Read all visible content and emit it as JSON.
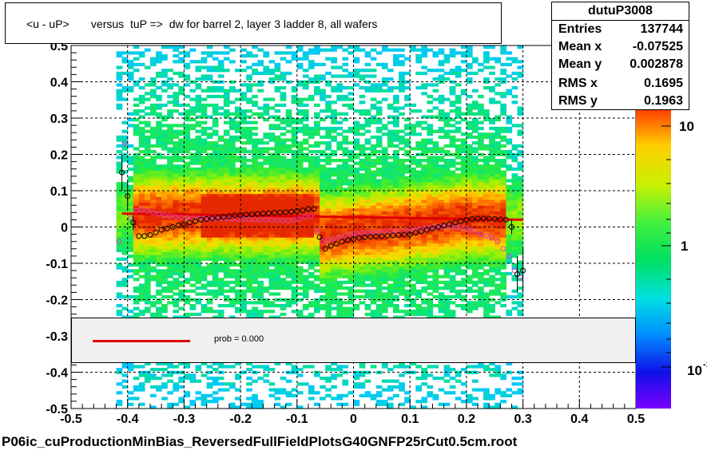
{
  "title": "<u - uP>       versus  tuP =>  dw for barrel 2, layer 3 ladder 8, all wafers",
  "stats": {
    "name": "dutuP3008",
    "rows": [
      {
        "label": "Entries",
        "value": "137744"
      },
      {
        "label": "Mean x",
        "value": "-0.07525"
      },
      {
        "label": "Mean y",
        "value": "0.002878"
      },
      {
        "label": "RMS x",
        "value": "0.1695"
      },
      {
        "label": "RMS y",
        "value": "0.1963"
      }
    ]
  },
  "fit_legend": {
    "text": "prob = 0.000",
    "color": "#e00000"
  },
  "footer": "P06ic_cuProductionMinBias_ReversedFullFieldPlotsG40GNFP25rCut0.5cm.root",
  "colorscale": {
    "labels": [
      "10",
      "1",
      "10"
    ],
    "exponent": "-1"
  },
  "chart_data": {
    "type": "heatmap",
    "xlim": [
      -0.5,
      0.5
    ],
    "ylim": [
      -0.5,
      0.5
    ],
    "xticks": [
      "-0.5",
      "-0.4",
      "-0.3",
      "-0.2",
      "-0.1",
      "0",
      "0.1",
      "0.2",
      "0.3",
      "0.4",
      "0.5"
    ],
    "yticks": [
      "-0.5",
      "-0.4",
      "-0.3",
      "-0.2",
      "-0.1",
      "0",
      "0.1",
      "0.2",
      "0.3",
      "0.4",
      "0.5"
    ],
    "grid": true,
    "fit_line": {
      "x": [
        -0.41,
        0.3
      ],
      "y": [
        0.037,
        0.02
      ],
      "color": "#e00000"
    },
    "profile_black": {
      "x": [
        -0.41,
        -0.4,
        -0.39,
        -0.38,
        -0.37,
        -0.36,
        -0.35,
        -0.34,
        -0.33,
        -0.32,
        -0.31,
        -0.3,
        -0.29,
        -0.28,
        -0.27,
        -0.26,
        -0.25,
        -0.24,
        -0.23,
        -0.22,
        -0.21,
        -0.2,
        -0.19,
        -0.18,
        -0.17,
        -0.16,
        -0.15,
        -0.14,
        -0.13,
        -0.12,
        -0.11,
        -0.1,
        -0.09,
        -0.08,
        -0.07,
        -0.06,
        -0.05,
        -0.04,
        -0.03,
        -0.02,
        -0.01,
        0.0,
        0.01,
        0.02,
        0.03,
        0.04,
        0.05,
        0.06,
        0.07,
        0.08,
        0.09,
        0.1,
        0.11,
        0.12,
        0.13,
        0.14,
        0.15,
        0.16,
        0.17,
        0.18,
        0.19,
        0.2,
        0.21,
        0.22,
        0.23,
        0.24,
        0.25,
        0.26,
        0.27,
        0.28,
        0.29,
        0.3
      ],
      "y": [
        0.15,
        0.085,
        0.012,
        -0.025,
        -0.025,
        -0.022,
        -0.015,
        -0.008,
        -0.004,
        0.0,
        0.005,
        0.008,
        0.012,
        0.016,
        0.02,
        0.022,
        0.024,
        0.026,
        0.028,
        0.03,
        0.032,
        0.033,
        0.034,
        0.035,
        0.036,
        0.037,
        0.038,
        0.039,
        0.04,
        0.041,
        0.042,
        0.044,
        0.046,
        0.05,
        0.05,
        -0.028,
        -0.06,
        -0.052,
        -0.046,
        -0.04,
        -0.036,
        -0.033,
        -0.03,
        -0.028,
        -0.027,
        -0.026,
        -0.025,
        -0.024,
        -0.023,
        -0.022,
        -0.021,
        -0.02,
        -0.016,
        -0.012,
        -0.008,
        -0.004,
        0.0,
        0.004,
        0.008,
        0.012,
        0.016,
        0.02,
        0.022,
        0.023,
        0.023,
        0.023,
        0.022,
        0.021,
        0.02,
        0.0,
        -0.13,
        -0.12
      ],
      "err": [
        0.05,
        0.04,
        0.02,
        0.006,
        0.005,
        0.004,
        0.004,
        0.003,
        0.003,
        0.003,
        0.003,
        0.003,
        0.003,
        0.003,
        0.003,
        0.003,
        0.003,
        0.003,
        0.003,
        0.003,
        0.003,
        0.003,
        0.003,
        0.003,
        0.003,
        0.003,
        0.003,
        0.003,
        0.003,
        0.003,
        0.003,
        0.003,
        0.003,
        0.004,
        0.004,
        0.006,
        0.004,
        0.003,
        0.003,
        0.003,
        0.003,
        0.003,
        0.003,
        0.003,
        0.003,
        0.003,
        0.003,
        0.003,
        0.003,
        0.003,
        0.003,
        0.003,
        0.003,
        0.003,
        0.003,
        0.003,
        0.003,
        0.003,
        0.003,
        0.003,
        0.003,
        0.003,
        0.003,
        0.003,
        0.003,
        0.003,
        0.004,
        0.004,
        0.005,
        0.02,
        0.05,
        0.06
      ]
    },
    "profile_magenta": {
      "x": [
        -0.415,
        -0.405,
        -0.395,
        -0.385,
        -0.375,
        -0.365,
        -0.355,
        -0.345,
        -0.335,
        -0.325,
        -0.315,
        -0.305,
        -0.295,
        -0.285,
        -0.275,
        -0.265,
        -0.255,
        -0.245,
        -0.235,
        -0.225,
        -0.215,
        -0.205,
        -0.195,
        -0.185,
        -0.175,
        -0.165,
        -0.155,
        -0.145,
        -0.135,
        -0.125,
        -0.115,
        -0.105,
        -0.095,
        -0.085,
        -0.075,
        -0.065,
        -0.055,
        -0.045,
        -0.035,
        -0.025,
        -0.015,
        -0.005,
        0.005,
        0.015,
        0.025,
        0.035,
        0.045,
        0.055,
        0.065,
        0.075,
        0.085,
        0.095,
        0.105,
        0.115,
        0.125,
        0.135,
        0.145,
        0.155,
        0.165,
        0.175,
        0.185,
        0.195,
        0.205,
        0.215,
        0.225,
        0.235,
        0.245,
        0.255,
        0.265,
        0.275,
        0.285,
        0.295
      ],
      "y": [
        -0.04,
        0.23,
        0.025,
        0.045,
        0.048,
        0.044,
        0.04,
        0.036,
        0.032,
        0.03,
        0.028,
        0.026,
        0.025,
        0.024,
        0.024,
        0.024,
        0.023,
        0.023,
        0.023,
        0.023,
        0.022,
        0.022,
        0.022,
        0.021,
        0.02,
        0.02,
        0.02,
        0.02,
        0.019,
        0.018,
        0.018,
        0.02,
        0.022,
        0.028,
        0.03,
        -0.01,
        -0.04,
        -0.036,
        -0.032,
        -0.028,
        -0.024,
        -0.02,
        -0.018,
        -0.016,
        -0.015,
        -0.014,
        -0.014,
        -0.013,
        -0.012,
        -0.012,
        -0.012,
        -0.01,
        -0.008,
        -0.006,
        -0.004,
        -0.002,
        0.0,
        0.001,
        0.002,
        0.0,
        -0.002,
        -0.004,
        -0.008,
        -0.012,
        -0.02,
        -0.025,
        -0.028,
        -0.04,
        -0.06,
        -0.08,
        -0.12,
        -0.14
      ]
    }
  }
}
